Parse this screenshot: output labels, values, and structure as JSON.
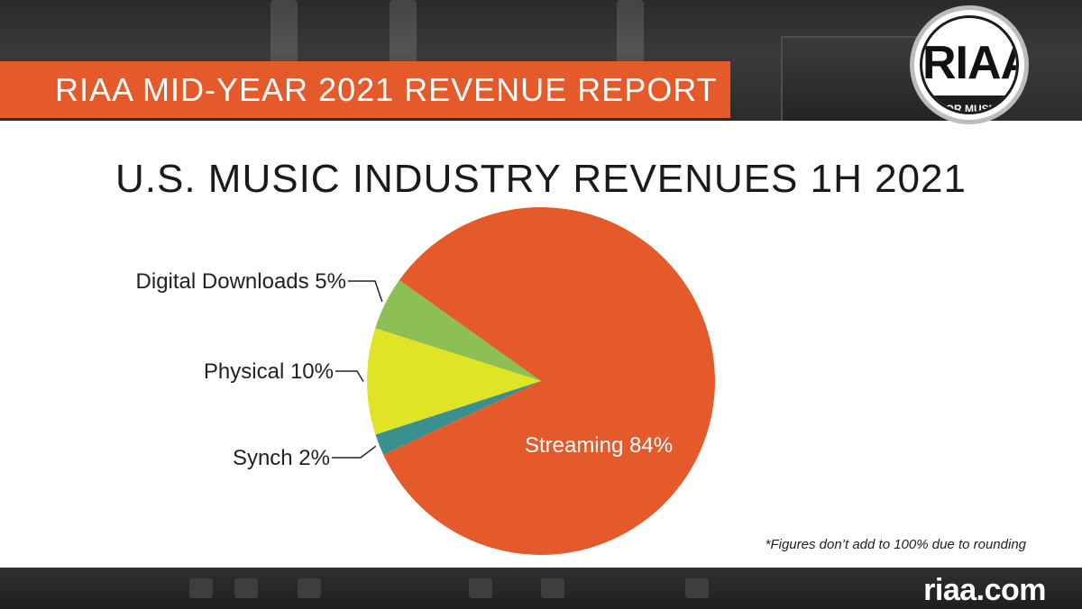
{
  "header": {
    "banner_text": "RIAA MID-YEAR 2021 REVENUE REPORT",
    "logo_text": "RIAA",
    "logo_subtext": "FOR MUSIC"
  },
  "chart_title": "U.S. MUSIC INDUSTRY REVENUES 1H 2021",
  "chart_data": {
    "type": "pie",
    "title": "U.S. MUSIC INDUSTRY REVENUES 1H 2021",
    "slices": [
      {
        "label": "Streaming",
        "value": 84,
        "display": "Streaming 84%",
        "color": "#e55a2b"
      },
      {
        "label": "Synch",
        "value": 2,
        "display": "Synch 2%",
        "color": "#3a8f8f"
      },
      {
        "label": "Physical",
        "value": 10,
        "display": "Physical 10%",
        "color": "#e0e424"
      },
      {
        "label": "Digital Downloads",
        "value": 5,
        "display": "Digital Downloads 5%",
        "color": "#8cc055"
      }
    ]
  },
  "footnote": "*Figures don’t add to 100% due to rounding",
  "footer": {
    "site": "riaa.com"
  }
}
